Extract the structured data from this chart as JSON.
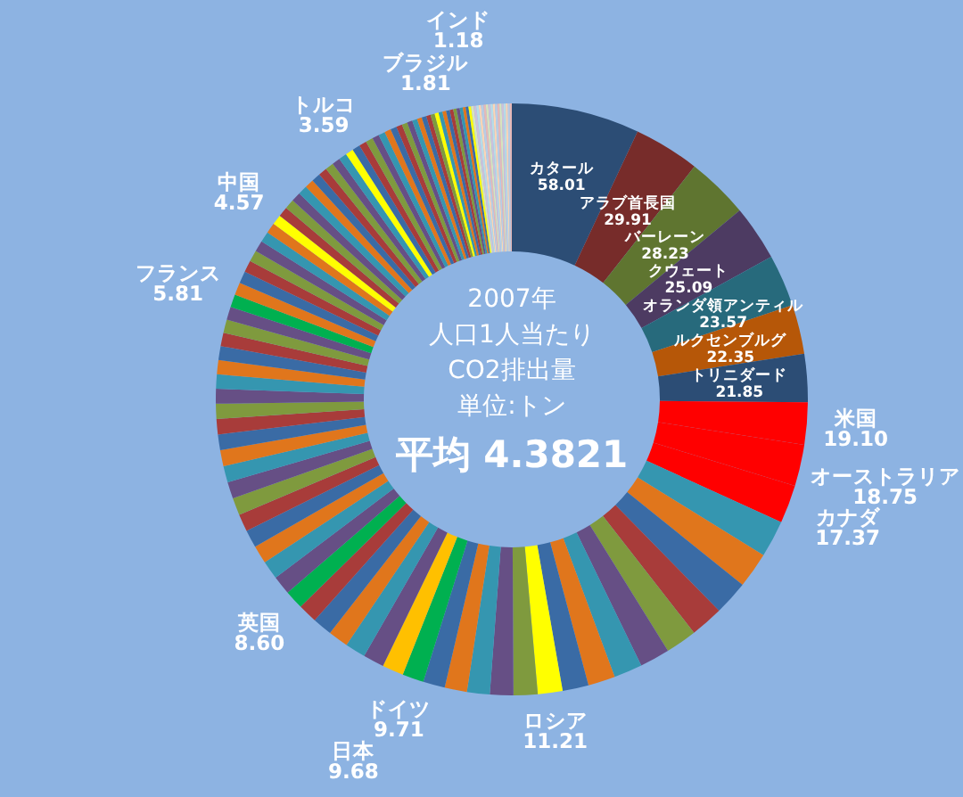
{
  "chart_data": {
    "type": "donut",
    "annotations": [
      "2007年",
      "人口1人当たり",
      "CO2排出量",
      "単位:トン",
      "平均 4.3821"
    ],
    "categories": [
      "カタール",
      "アラブ首長国",
      "バーレーン",
      "クウェート",
      "オランダ領アンティル",
      "ルクセンブルグ",
      "トリニダード",
      "米国",
      "オーストラリア",
      "カナダ",
      null,
      null,
      null,
      null,
      null,
      null,
      null,
      null,
      null,
      "ロシア",
      null,
      null,
      null,
      null,
      null,
      "ドイツ",
      "日本",
      null,
      null,
      null,
      null,
      null,
      "英国",
      null,
      null,
      null,
      null,
      null,
      null,
      null,
      null,
      null,
      null,
      null,
      null,
      null,
      null,
      null,
      null,
      null,
      null,
      null,
      "フランス",
      null,
      null,
      null,
      null,
      null,
      null,
      null,
      "中国",
      null,
      null,
      null,
      null,
      null,
      null,
      null,
      null,
      null,
      null,
      "トルコ",
      null,
      null,
      null,
      null,
      null,
      null,
      null,
      null,
      null,
      null,
      null,
      null,
      null,
      null,
      null,
      "ブラジル",
      null,
      null,
      null,
      null,
      null,
      null,
      null,
      null,
      null,
      "インド",
      null,
      null,
      null,
      null,
      null,
      null,
      null,
      null,
      null,
      null,
      null,
      null,
      null,
      null,
      null,
      null,
      null,
      null
    ],
    "values": [
      58.01,
      29.91,
      28.23,
      25.09,
      23.57,
      22.35,
      21.85,
      19.1,
      18.75,
      17.37,
      16.8,
      16.2,
      15.6,
      14.9,
      14.2,
      13.6,
      12.9,
      12.3,
      11.8,
      11.21,
      10.9,
      10.6,
      10.3,
      10.1,
      9.9,
      9.71,
      9.68,
      9.5,
      9.3,
      9.1,
      8.9,
      8.7,
      8.6,
      8.5,
      8.4,
      8.2,
      8.1,
      7.9,
      7.8,
      7.6,
      7.4,
      7.3,
      7.1,
      7.0,
      6.8,
      6.7,
      6.5,
      6.4,
      6.3,
      6.1,
      6.0,
      5.9,
      5.81,
      5.7,
      5.5,
      5.3,
      5.2,
      5.0,
      4.8,
      4.7,
      4.57,
      4.5,
      4.4,
      4.3,
      4.2,
      4.1,
      4.0,
      3.9,
      3.8,
      3.7,
      3.65,
      3.59,
      3.5,
      3.4,
      3.3,
      3.1,
      3.0,
      2.9,
      2.8,
      2.7,
      2.5,
      2.4,
      2.3,
      2.2,
      2.1,
      2.0,
      1.9,
      1.81,
      1.75,
      1.7,
      1.65,
      1.6,
      1.5,
      1.45,
      1.4,
      1.3,
      1.25,
      1.18,
      1.15,
      1.15,
      1.1,
      1.1,
      1.1,
      1.05,
      1.05,
      1.05,
      1.0,
      1.0,
      1.0,
      1.0,
      0.95,
      0.95,
      0.95,
      0.9,
      0.9,
      0.9
    ],
    "value_labels": [
      "58.01",
      "29.91",
      "28.23",
      "25.09",
      "23.57",
      "22.35",
      "21.85",
      "19.10",
      "18.75",
      "17.37",
      null,
      null,
      null,
      null,
      null,
      null,
      null,
      null,
      null,
      "11.21",
      null,
      null,
      null,
      null,
      null,
      "9.71",
      "9.68",
      null,
      null,
      null,
      null,
      null,
      "8.60",
      null,
      null,
      null,
      null,
      null,
      null,
      null,
      null,
      null,
      null,
      null,
      null,
      null,
      null,
      null,
      null,
      null,
      null,
      null,
      "5.81",
      null,
      null,
      null,
      null,
      null,
      null,
      null,
      "4.57",
      null,
      null,
      null,
      null,
      null,
      null,
      null,
      null,
      null,
      null,
      "3.59",
      null,
      null,
      null,
      null,
      null,
      null,
      null,
      null,
      null,
      null,
      null,
      null,
      null,
      null,
      null,
      "1.81",
      null,
      null,
      null,
      null,
      null,
      null,
      null,
      null,
      null,
      "1.18",
      null,
      null,
      null,
      null,
      null,
      null,
      null,
      null,
      null,
      null,
      null,
      null,
      null,
      null,
      null,
      null,
      null,
      null
    ],
    "colors": [
      "#2c4d75",
      "#772c2a",
      "#5f7530",
      "#4d3b62",
      "#276a7c",
      "#b65708",
      "#2c4d75",
      "#ff0000",
      "#ff0000",
      "#ff0000",
      "#3596b0",
      "#e0761c",
      "#3a6ba5",
      "#a83c3a",
      "#7f9a3e",
      "#664f85",
      "#3596b0",
      "#e0761c",
      "#3a6ba5",
      "#ffff00",
      "#7f9a3e",
      "#664f85",
      "#3596b0",
      "#e0761c",
      "#3a6ba5",
      "#00b050",
      "#ffc000",
      "#664f85",
      "#3596b0",
      "#e0761c",
      "#3a6ba5",
      "#a83c3a",
      "#00b050",
      "#664f85",
      "#3596b0",
      "#e0761c",
      "#3a6ba5",
      "#a83c3a",
      "#7f9a3e",
      "#664f85",
      "#3596b0",
      "#e0761c",
      "#3a6ba5",
      "#a83c3a",
      "#7f9a3e",
      "#664f85",
      "#3596b0",
      "#e0761c",
      "#3a6ba5",
      "#a83c3a",
      "#7f9a3e",
      "#664f85",
      "#00b050",
      "#e0761c",
      "#3a6ba5",
      "#a83c3a",
      "#7f9a3e",
      "#664f85",
      "#3596b0",
      "#e0761c",
      "#ffff00",
      "#a83c3a",
      "#7f9a3e",
      "#664f85",
      "#3596b0",
      "#e0761c",
      "#3a6ba5",
      "#a83c3a",
      "#7f9a3e",
      "#664f85",
      "#3596b0",
      "#ffff00",
      "#3a6ba5",
      "#a83c3a",
      "#7f9a3e",
      "#664f85",
      "#3596b0",
      "#e0761c",
      "#3a6ba5",
      "#a83c3a",
      "#7f9a3e",
      "#664f85",
      "#3596b0",
      "#e0761c",
      "#3a6ba5",
      "#a83c3a",
      "#7f9a3e",
      "#ffff00",
      "#3596b0",
      "#e0761c",
      "#3a6ba5",
      "#a83c3a",
      "#7f9a3e",
      "#664f85",
      "#3596b0",
      "#e0761c",
      "#3a6ba5",
      "#ffff00",
      "#d7e4bd",
      "#ccc1da",
      "#b7dde8",
      "#fcd5b5",
      "#b9cde5",
      "#e6b9b8",
      "#d7e4bd",
      "#ccc1da",
      "#b7dde8",
      "#fcd5b5",
      "#b9cde5",
      "#e6b9b8",
      "#d7e4bd",
      "#ccc1da",
      "#b7dde8",
      "#fcd5b5",
      "#b9cde5",
      "#e6b9b8"
    ]
  }
}
